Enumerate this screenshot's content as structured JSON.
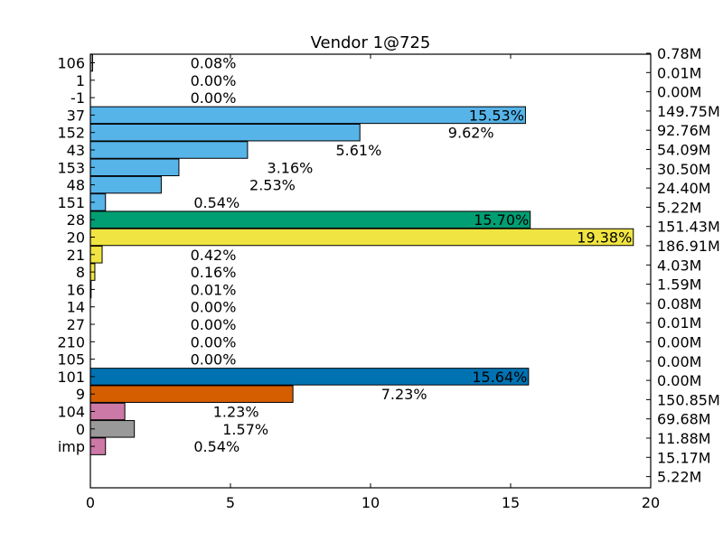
{
  "chart_data": {
    "type": "bar",
    "orientation": "horizontal",
    "title": "Vendor 1@725",
    "xlim": [
      0,
      20
    ],
    "x_ticks": [
      "0",
      "5",
      "10",
      "15",
      "20"
    ],
    "categories": [
      "106",
      "1",
      "-1",
      "37",
      "152",
      "43",
      "153",
      "48",
      "151",
      "28",
      "20",
      "21",
      "8",
      "16",
      "14",
      "27",
      "210",
      "105",
      "101",
      "9",
      "104",
      "0",
      "imp"
    ],
    "values": [
      0.08,
      0.0,
      0.0,
      15.53,
      9.62,
      5.61,
      3.16,
      2.53,
      0.54,
      15.7,
      19.38,
      0.42,
      0.16,
      0.01,
      0.0,
      0.0,
      0.0,
      0.0,
      15.64,
      7.23,
      1.23,
      1.57,
      0.54
    ],
    "value_labels": [
      "0.08%",
      "0.00%",
      "0.00%",
      "15.53%",
      "9.62%",
      "5.61%",
      "3.16%",
      "2.53%",
      "0.54%",
      "15.70%",
      "19.38%",
      "0.42%",
      "0.16%",
      "0.01%",
      "0.00%",
      "0.00%",
      "0.00%",
      "0.00%",
      "15.64%",
      "7.23%",
      "1.23%",
      "1.57%",
      "0.54%"
    ],
    "colors": [
      "#999999",
      "#999999",
      "#999999",
      "#56b4e9",
      "#56b4e9",
      "#56b4e9",
      "#56b4e9",
      "#56b4e9",
      "#56b4e9",
      "#009e73",
      "#f0e442",
      "#f0e442",
      "#f0e442",
      "#f0e442",
      "#f0e442",
      "#f0e442",
      "#f0e442",
      "#f0e442",
      "#0072b2",
      "#d55e00",
      "#cc79a7",
      "#999999",
      "#cc79a7"
    ],
    "right_labels": [
      "0.78M",
      "0.01M",
      "0.00M",
      "149.75M",
      "92.76M",
      "54.09M",
      "30.50M",
      "24.40M",
      "5.22M",
      "151.43M",
      "186.91M",
      "4.03M",
      "1.59M",
      "0.08M",
      "0.01M",
      "0.00M",
      "0.00M",
      "0.00M",
      "150.85M",
      "69.68M",
      "11.88M",
      "15.17M",
      "5.22M"
    ],
    "grid": false
  }
}
